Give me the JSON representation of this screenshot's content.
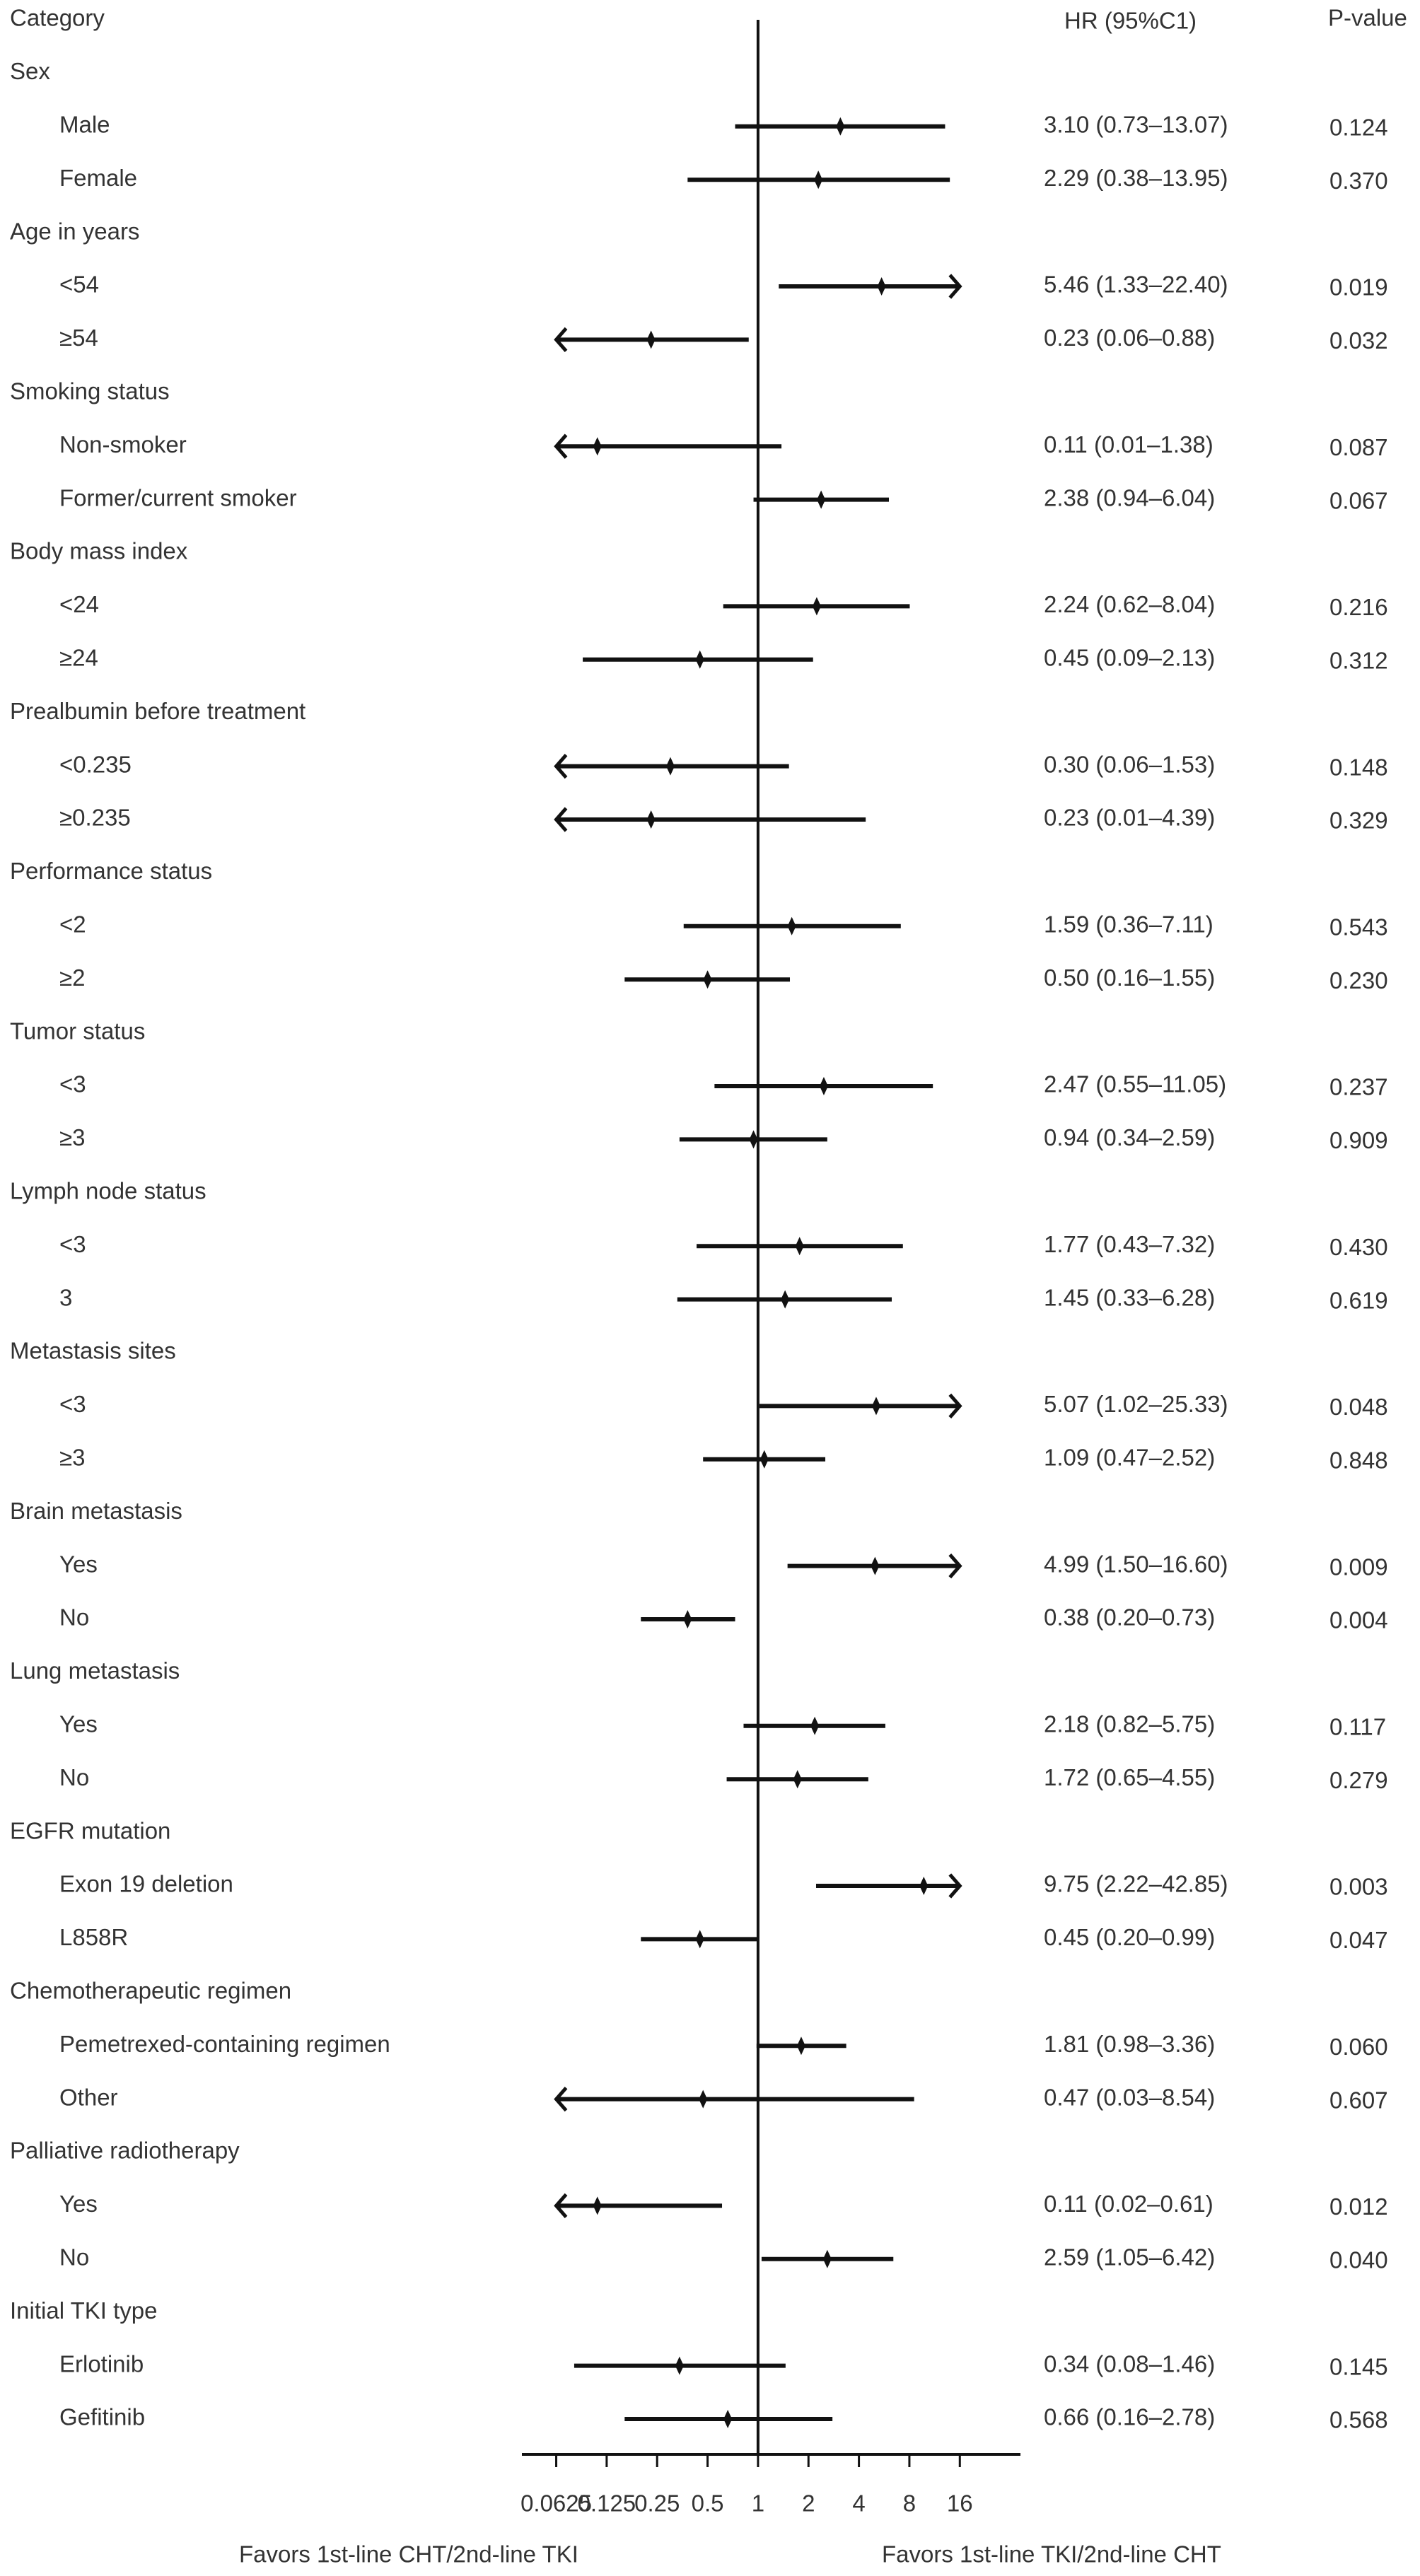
{
  "chart_data": {
    "type": "forest",
    "columns": {
      "category": "Category",
      "estimate": "HR (95%C1)",
      "p": "P-value"
    },
    "xscale": "log2",
    "xlim": [
      0.039,
      36.8
    ],
    "xticks": [
      0.0625,
      0.125,
      0.25,
      0.5,
      1,
      2,
      4,
      8,
      16
    ],
    "reference": 1,
    "left_label": "Favors 1st-line CHT/2nd-line TKI",
    "right_label": "Favors 1st-line TKI/2nd-line CHT",
    "color": "#111111",
    "groups": [
      {
        "name": "Sex",
        "rows": [
          {
            "label": "Male",
            "hr": 3.1,
            "lower": 0.73,
            "upper": 13.07,
            "value_label": "3.10 (0.73–13.07)",
            "p": "0.124"
          },
          {
            "label": "Female",
            "hr": 2.29,
            "lower": 0.38,
            "upper": 13.95,
            "value_label": "2.29 (0.38–13.95)",
            "p": "0.370"
          }
        ]
      },
      {
        "name": "Age in years",
        "rows": [
          {
            "label": "<54",
            "hr": 5.46,
            "lower": 1.33,
            "upper": 22.4,
            "value_label": "5.46 (1.33–22.40)",
            "p": "0.019"
          },
          {
            "label": "≥54",
            "hr": 0.23,
            "lower": 0.06,
            "upper": 0.88,
            "value_label": "0.23 (0.06–0.88)",
            "p": "0.032"
          }
        ]
      },
      {
        "name": "Smoking status",
        "rows": [
          {
            "label": "Non-smoker",
            "hr": 0.11,
            "lower": 0.01,
            "upper": 1.38,
            "value_label": "0.11 (0.01–1.38)",
            "p": "0.087"
          },
          {
            "label": "Former/current smoker",
            "hr": 2.38,
            "lower": 0.94,
            "upper": 6.04,
            "value_label": "2.38 (0.94–6.04)",
            "p": "0.067"
          }
        ]
      },
      {
        "name": "Body mass index",
        "rows": [
          {
            "label": "<24",
            "hr": 2.24,
            "lower": 0.62,
            "upper": 8.04,
            "value_label": "2.24 (0.62–8.04)",
            "p": "0.216"
          },
          {
            "label": "≥24",
            "hr": 0.45,
            "lower": 0.09,
            "upper": 2.13,
            "value_label": "0.45 (0.09–2.13)",
            "p": "0.312"
          }
        ]
      },
      {
        "name": "Prealbumin before treatment",
        "rows": [
          {
            "label": "<0.235",
            "hr": 0.3,
            "lower": 0.06,
            "upper": 1.53,
            "value_label": "0.30 (0.06–1.53)",
            "p": "0.148"
          },
          {
            "label": "≥0.235",
            "hr": 0.23,
            "lower": 0.01,
            "upper": 4.39,
            "value_label": "0.23 (0.01–4.39)",
            "p": "0.329"
          }
        ]
      },
      {
        "name": "Performance status",
        "rows": [
          {
            "label": "<2",
            "hr": 1.59,
            "lower": 0.36,
            "upper": 7.11,
            "value_label": "1.59 (0.36–7.11)",
            "p": "0.543"
          },
          {
            "label": "≥2",
            "hr": 0.5,
            "lower": 0.16,
            "upper": 1.55,
            "value_label": "0.50 (0.16–1.55)",
            "p": "0.230"
          }
        ]
      },
      {
        "name": "Tumor status",
        "rows": [
          {
            "label": "<3",
            "hr": 2.47,
            "lower": 0.55,
            "upper": 11.05,
            "value_label": "2.47 (0.55–11.05)",
            "p": "0.237"
          },
          {
            "label": "≥3",
            "hr": 0.94,
            "lower": 0.34,
            "upper": 2.59,
            "value_label": "0.94 (0.34–2.59)",
            "p": "0.909"
          }
        ]
      },
      {
        "name": "Lymph node status",
        "rows": [
          {
            "label": "<3",
            "hr": 1.77,
            "lower": 0.43,
            "upper": 7.32,
            "value_label": "1.77 (0.43–7.32)",
            "p": "0.430"
          },
          {
            "label": "3",
            "hr": 1.45,
            "lower": 0.33,
            "upper": 6.28,
            "value_label": "1.45 (0.33–6.28)",
            "p": "0.619"
          }
        ]
      },
      {
        "name": "Metastasis sites",
        "rows": [
          {
            "label": "<3",
            "hr": 5.07,
            "lower": 1.02,
            "upper": 25.33,
            "value_label": "5.07 (1.02–25.33)",
            "p": "0.048"
          },
          {
            "label": "≥3",
            "hr": 1.09,
            "lower": 0.47,
            "upper": 2.52,
            "value_label": "1.09 (0.47–2.52)",
            "p": "0.848"
          }
        ]
      },
      {
        "name": "Brain metastasis",
        "rows": [
          {
            "label": "Yes",
            "hr": 4.99,
            "lower": 1.5,
            "upper": 16.6,
            "value_label": "4.99 (1.50–16.60)",
            "p": "0.009"
          },
          {
            "label": "No",
            "hr": 0.38,
            "lower": 0.2,
            "upper": 0.73,
            "value_label": "0.38 (0.20–0.73)",
            "p": "0.004"
          }
        ]
      },
      {
        "name": "Lung metastasis",
        "rows": [
          {
            "label": "Yes",
            "hr": 2.18,
            "lower": 0.82,
            "upper": 5.75,
            "value_label": "2.18 (0.82–5.75)",
            "p": "0.117"
          },
          {
            "label": "No",
            "hr": 1.72,
            "lower": 0.65,
            "upper": 4.55,
            "value_label": "1.72 (0.65–4.55)",
            "p": "0.279"
          }
        ]
      },
      {
        "name": "EGFR mutation",
        "rows": [
          {
            "label": "Exon 19 deletion",
            "hr": 9.75,
            "lower": 2.22,
            "upper": 42.85,
            "value_label": "9.75 (2.22–42.85)",
            "p": "0.003"
          },
          {
            "label": "L858R",
            "hr": 0.45,
            "lower": 0.2,
            "upper": 0.99,
            "value_label": "0.45 (0.20–0.99)",
            "p": "0.047"
          }
        ]
      },
      {
        "name": "Chemotherapeutic regimen",
        "rows": [
          {
            "label": "Pemetrexed-containing regimen",
            "hr": 1.81,
            "lower": 0.98,
            "upper": 3.36,
            "value_label": "1.81 (0.98–3.36)",
            "p": "0.060"
          },
          {
            "label": "Other",
            "hr": 0.47,
            "lower": 0.03,
            "upper": 8.54,
            "value_label": "0.47 (0.03–8.54)",
            "p": "0.607"
          }
        ]
      },
      {
        "name": "Palliative radiotherapy",
        "rows": [
          {
            "label": "Yes",
            "hr": 0.11,
            "lower": 0.02,
            "upper": 0.61,
            "value_label": "0.11 (0.02–0.61)",
            "p": "0.012"
          },
          {
            "label": "No",
            "hr": 2.59,
            "lower": 1.05,
            "upper": 6.42,
            "value_label": "2.59 (1.05–6.42)",
            "p": "0.040"
          }
        ]
      },
      {
        "name": "Initial TKI type",
        "rows": [
          {
            "label": "Erlotinib",
            "hr": 0.34,
            "lower": 0.08,
            "upper": 1.46,
            "value_label": "0.34 (0.08–1.46)",
            "p": "0.145"
          },
          {
            "label": "Gefitinib",
            "hr": 0.66,
            "lower": 0.16,
            "upper": 2.78,
            "value_label": "0.66 (0.16–2.78)",
            "p": "0.568"
          }
        ]
      }
    ]
  }
}
